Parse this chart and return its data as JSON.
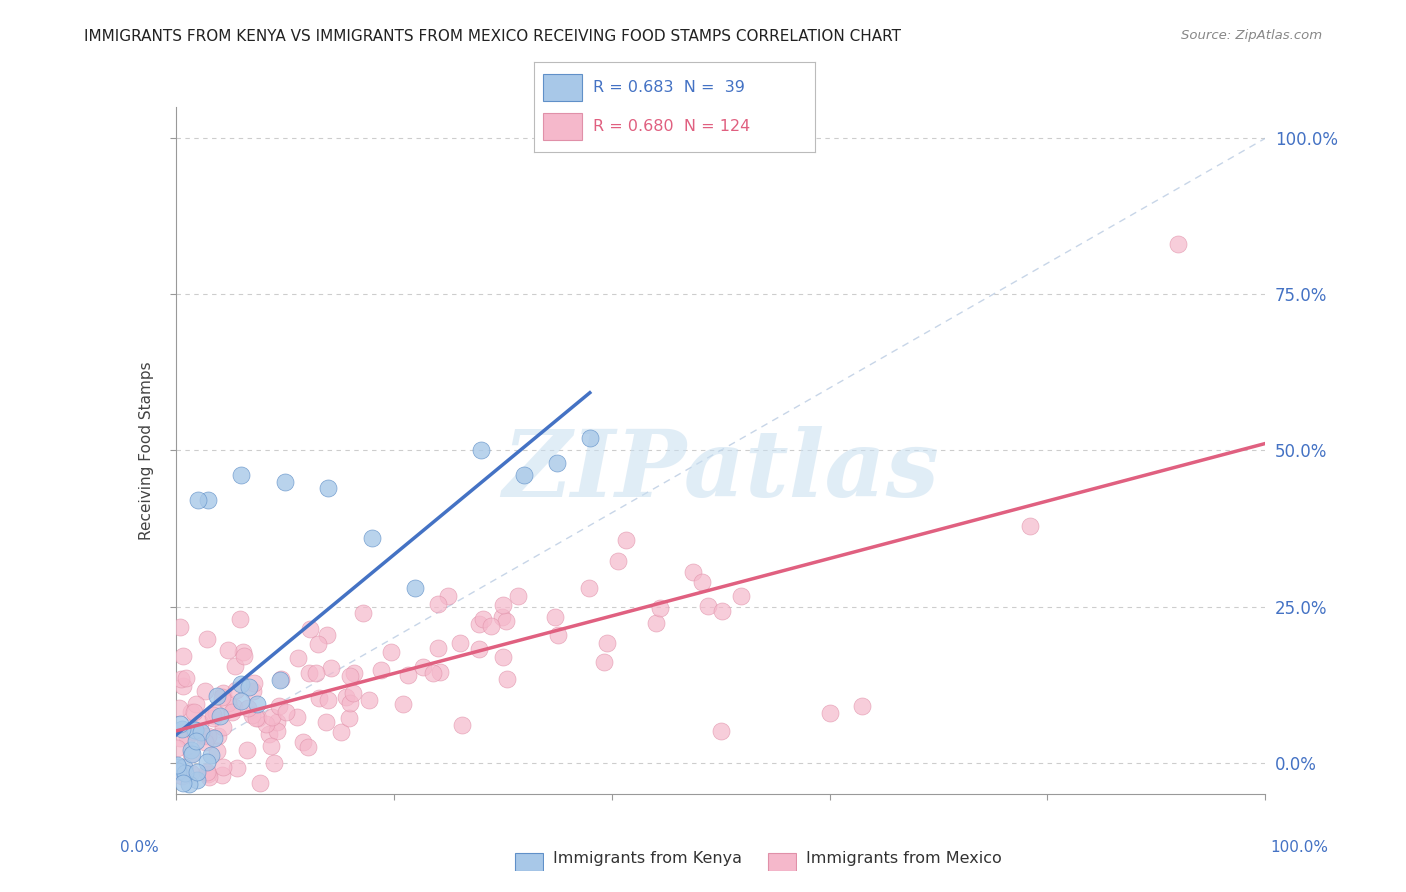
{
  "title": "IMMIGRANTS FROM KENYA VS IMMIGRANTS FROM MEXICO RECEIVING FOOD STAMPS CORRELATION CHART",
  "source": "Source: ZipAtlas.com",
  "ylabel": "Receiving Food Stamps",
  "legend_kenya": "Immigrants from Kenya",
  "legend_mexico": "Immigrants from Mexico",
  "R_kenya": "0.683",
  "N_kenya": "39",
  "R_mexico": "0.680",
  "N_mexico": "124",
  "color_kenya": "#a8c8e8",
  "color_mexico": "#f5b8cb",
  "line_kenya": "#4472c4",
  "line_mexico": "#e06080",
  "watermark": "ZIPatlas",
  "background_color": "#ffffff",
  "grid_color": "#c8c8c8",
  "xlim": [
    0.0,
    1.0
  ],
  "ylim": [
    -0.05,
    1.05
  ],
  "ytick_vals": [
    0.0,
    0.25,
    0.5,
    0.75,
    1.0
  ],
  "ytick_labels": [
    "0.0%",
    "25.0%",
    "50.0%",
    "75.0%",
    "100.0%"
  ]
}
